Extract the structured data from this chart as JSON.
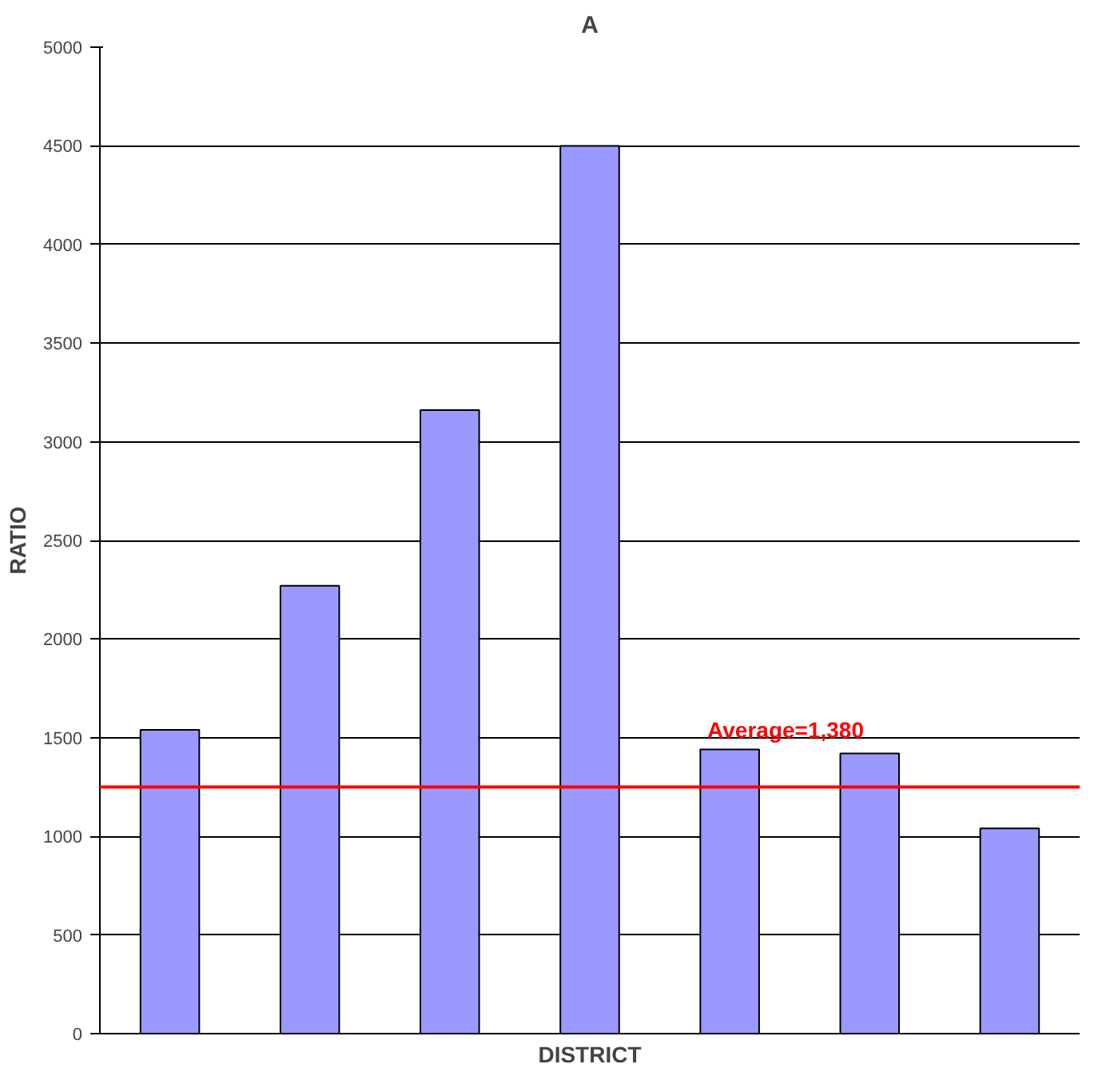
{
  "chart_data": {
    "type": "bar",
    "title": "A",
    "xlabel": "DISTRICT",
    "ylabel": "RATIO",
    "categories": [
      null,
      null,
      null,
      null,
      null,
      null,
      null
    ],
    "values": [
      1540,
      2270,
      3160,
      4500,
      1440,
      1420,
      1040
    ],
    "color": "#9999ff",
    "ylim": [
      0,
      5000
    ],
    "yticks": [
      0,
      500,
      1000,
      1500,
      2000,
      2500,
      3000,
      3500,
      4000,
      4500,
      5000
    ],
    "grid": "y",
    "annotations": [
      "Average=1,380"
    ],
    "ref_lines": [
      {
        "axis": "y",
        "value": 1250,
        "color": "#ff0000"
      }
    ]
  }
}
